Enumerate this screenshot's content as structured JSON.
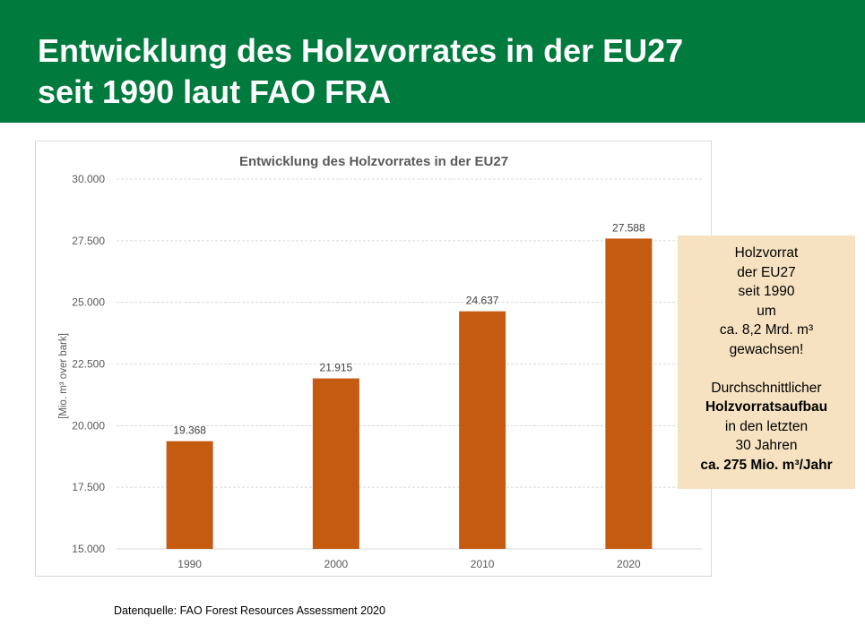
{
  "header": {
    "title_line1": "Entwicklung des Holzvorrates in der EU27",
    "title_line2": "seit 1990 laut FAO FRA"
  },
  "colors": {
    "header_bg": "#007a3d",
    "bar": "#c55a11",
    "info_box_bg": "#f6e2c0",
    "gridline": "#d9d9d9"
  },
  "chart_data": {
    "type": "bar",
    "title": "Entwicklung des Holzvorrates in der EU27",
    "ylabel": "[Mio. m³ over bark]",
    "xlabel": "",
    "categories": [
      "1990",
      "2000",
      "2010",
      "2020"
    ],
    "values": [
      19368,
      21915,
      24637,
      27588
    ],
    "value_labels": [
      "19.368",
      "21.915",
      "24.637",
      "27.588"
    ],
    "ylim": [
      15000,
      30000
    ],
    "yticks": [
      15000,
      17500,
      20000,
      22500,
      25000,
      27500,
      30000
    ],
    "ytick_labels": [
      "15.000",
      "17.500",
      "20.000",
      "22.500",
      "25.000",
      "27.500",
      "30.000"
    ],
    "grid": true,
    "legend": "none"
  },
  "info_box": {
    "line1": "Holzvorrat",
    "line2": "der EU27",
    "line3": "seit 1990",
    "line4": "um",
    "line5": "ca. 8,2 Mrd. m³",
    "line6": "gewachsen!",
    "line7": "Durchschnittlicher",
    "line8": "Holzvorratsaufbau",
    "line9": "in den letzten",
    "line10": "30 Jahren",
    "line11": "ca. 275 Mio. m³/Jahr"
  },
  "footer": {
    "source": "Datenquelle: FAO Forest Resources Assessment 2020"
  }
}
